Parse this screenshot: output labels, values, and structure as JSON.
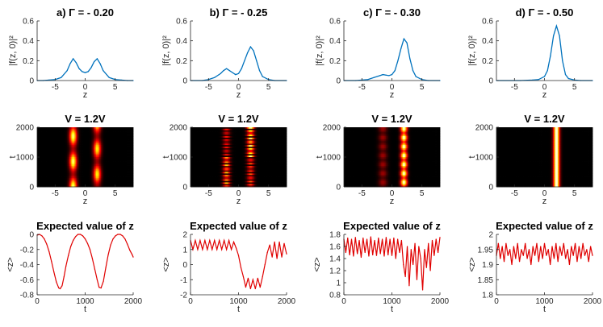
{
  "chart_data": [
    {
      "id": "a",
      "kind": "density",
      "type": "area",
      "title": "a) Γ = - 0.20",
      "xlabel": "z",
      "ylabel": "|f(z, 0)|²",
      "xlim": [
        -8,
        8
      ],
      "ylim": [
        0,
        0.6
      ],
      "xticks": [
        -5,
        0,
        5
      ],
      "yticks": [
        0,
        0.2,
        0.4,
        0.6
      ],
      "x": [
        -8,
        -7,
        -6,
        -5,
        -4,
        -3,
        -2.5,
        -2,
        -1.5,
        -1,
        -0.5,
        0,
        0.5,
        1,
        1.5,
        2,
        2.5,
        3,
        4,
        5,
        6,
        7,
        8
      ],
      "y": [
        0.0,
        0.0,
        0.005,
        0.01,
        0.03,
        0.1,
        0.17,
        0.22,
        0.18,
        0.12,
        0.09,
        0.08,
        0.09,
        0.13,
        0.19,
        0.22,
        0.17,
        0.1,
        0.03,
        0.01,
        0.005,
        0.0,
        0.0
      ]
    },
    {
      "id": "b",
      "kind": "density",
      "type": "area",
      "title": "b) Γ = - 0.25",
      "xlabel": "z",
      "ylabel": "|f(z, 0)|²",
      "xlim": [
        -8,
        8
      ],
      "ylim": [
        0,
        0.6
      ],
      "xticks": [
        -5,
        0,
        5
      ],
      "yticks": [
        0,
        0.2,
        0.4,
        0.6
      ],
      "x": [
        -8,
        -6,
        -5,
        -4,
        -3,
        -2.5,
        -2,
        -1.5,
        -1,
        -0.5,
        0,
        0.5,
        1,
        1.5,
        2,
        2.5,
        3,
        3.5,
        4,
        5,
        6,
        8
      ],
      "y": [
        0.0,
        0.0,
        0.01,
        0.03,
        0.07,
        0.1,
        0.12,
        0.1,
        0.08,
        0.06,
        0.07,
        0.12,
        0.2,
        0.28,
        0.34,
        0.3,
        0.2,
        0.1,
        0.04,
        0.01,
        0.0,
        0.0
      ]
    },
    {
      "id": "c",
      "kind": "density",
      "type": "area",
      "title": "c) Γ = - 0.30",
      "xlabel": "z",
      "ylabel": "|f(z, 0)|²",
      "xlim": [
        -8,
        8
      ],
      "ylim": [
        0,
        0.6
      ],
      "xticks": [
        -5,
        0,
        5
      ],
      "yticks": [
        0,
        0.2,
        0.4,
        0.6
      ],
      "x": [
        -8,
        -6,
        -5,
        -4,
        -3,
        -2,
        -1.5,
        -1,
        -0.5,
        0,
        0.5,
        1,
        1.5,
        2,
        2.5,
        3,
        3.5,
        4,
        5,
        6,
        8
      ],
      "y": [
        0.0,
        0.0,
        0.005,
        0.01,
        0.03,
        0.05,
        0.06,
        0.055,
        0.05,
        0.06,
        0.1,
        0.2,
        0.32,
        0.42,
        0.38,
        0.22,
        0.1,
        0.04,
        0.01,
        0.0,
        0.0
      ]
    },
    {
      "id": "d",
      "kind": "density",
      "type": "area",
      "title": "d) Γ = - 0.50",
      "xlabel": "z",
      "ylabel": "|f(z, 0)|²",
      "xlim": [
        -8,
        8
      ],
      "ylim": [
        0,
        0.6
      ],
      "xticks": [
        -5,
        0,
        5
      ],
      "yticks": [
        0,
        0.2,
        0.4,
        0.6
      ],
      "x": [
        -8,
        -4,
        -2,
        -1,
        0,
        0.5,
        1,
        1.5,
        2,
        2.5,
        3,
        3.5,
        4,
        5,
        6,
        8
      ],
      "y": [
        0.0,
        0.0,
        0.005,
        0.01,
        0.04,
        0.1,
        0.25,
        0.45,
        0.55,
        0.45,
        0.2,
        0.06,
        0.02,
        0.005,
        0.0,
        0.0
      ]
    },
    {
      "id": "a",
      "kind": "heatmap",
      "type": "heatmap",
      "title": "V = 1.2V",
      "xlabel": "z",
      "ylabel": "t",
      "xlim": [
        -8,
        8
      ],
      "ylim": [
        0,
        2000
      ],
      "xticks": [
        -5,
        0,
        5
      ],
      "yticks": [
        0,
        1000,
        2000
      ],
      "peaks": [
        {
          "z": -2,
          "amp": 0.9,
          "width": 0.6
        },
        {
          "z": 2,
          "amp": 0.8,
          "width": 0.6
        }
      ],
      "modulation": "swap",
      "period": 850
    },
    {
      "id": "b",
      "kind": "heatmap",
      "type": "heatmap",
      "title": "V = 1.2V",
      "xlabel": "z",
      "ylabel": "t",
      "xlim": [
        -8,
        8
      ],
      "ylim": [
        0,
        2000
      ],
      "xticks": [
        -5,
        0,
        5
      ],
      "yticks": [
        0,
        1000,
        2000
      ],
      "peaks": [
        {
          "z": -2,
          "amp": 0.75,
          "width": 0.6
        },
        {
          "z": 2,
          "amp": 0.95,
          "width": 0.6
        }
      ],
      "modulation": "stripes",
      "period": 120
    },
    {
      "id": "c",
      "kind": "heatmap",
      "type": "heatmap",
      "title": "V = 1.2V",
      "xlabel": "z",
      "ylabel": "t",
      "xlim": [
        -8,
        8
      ],
      "ylim": [
        0,
        2000
      ],
      "xticks": [
        -5,
        0,
        5
      ],
      "yticks": [
        0,
        1000,
        2000
      ],
      "peaks": [
        {
          "z": -1.5,
          "amp": 0.25,
          "width": 0.7
        },
        {
          "z": 2,
          "amp": 1.0,
          "width": 0.55
        }
      ],
      "modulation": "fine",
      "period": 60
    },
    {
      "id": "d",
      "kind": "heatmap",
      "type": "heatmap",
      "title": "V = 1.2V",
      "xlabel": "z",
      "ylabel": "t",
      "xlim": [
        -8,
        8
      ],
      "ylim": [
        0,
        2000
      ],
      "xticks": [
        -5,
        0,
        5
      ],
      "yticks": [
        0,
        1000,
        2000
      ],
      "peaks": [
        {
          "z": 2,
          "amp": 1.0,
          "width": 0.5
        }
      ],
      "modulation": "none",
      "period": 0
    },
    {
      "id": "a",
      "kind": "line",
      "type": "line",
      "title": "Expected value of z",
      "xlabel": "t",
      "ylabel": "<z>",
      "xlim": [
        0,
        2000
      ],
      "ylim": [
        -0.8,
        0
      ],
      "xticks": [
        0,
        1000,
        2000
      ],
      "yticks": [
        0,
        -0.2,
        -0.4,
        -0.6,
        -0.8
      ],
      "x": [
        0,
        50,
        100,
        150,
        200,
        250,
        300,
        350,
        400,
        450,
        480,
        520,
        560,
        600,
        650,
        700,
        750,
        800,
        850,
        900,
        950,
        1000,
        1050,
        1100,
        1150,
        1200,
        1250,
        1290,
        1330,
        1380,
        1430,
        1480,
        1530,
        1580,
        1630,
        1680,
        1730,
        1780,
        1830,
        1880,
        1930,
        1980,
        2000
      ],
      "y": [
        -0.01,
        0.0,
        -0.02,
        -0.06,
        -0.13,
        -0.23,
        -0.36,
        -0.5,
        -0.63,
        -0.71,
        -0.72,
        -0.68,
        -0.56,
        -0.42,
        -0.28,
        -0.16,
        -0.08,
        -0.03,
        0.0,
        0.0,
        -0.02,
        -0.06,
        -0.12,
        -0.2,
        -0.32,
        -0.46,
        -0.6,
        -0.7,
        -0.71,
        -0.62,
        -0.44,
        -0.27,
        -0.14,
        -0.06,
        -0.02,
        0.0,
        0.0,
        -0.02,
        -0.06,
        -0.13,
        -0.21,
        -0.27,
        -0.3
      ]
    },
    {
      "id": "b",
      "kind": "line",
      "type": "line",
      "title": "Expected value of z",
      "xlabel": "t",
      "ylabel": "<z>",
      "xlim": [
        0,
        2000
      ],
      "ylim": [
        -2,
        2
      ],
      "xticks": [
        0,
        1000,
        2000
      ],
      "yticks": [
        2,
        1,
        0,
        -1,
        -2
      ],
      "x": [
        0,
        50,
        100,
        150,
        200,
        250,
        300,
        350,
        400,
        450,
        500,
        550,
        600,
        650,
        700,
        750,
        800,
        850,
        900,
        950,
        1000,
        1050,
        1100,
        1150,
        1200,
        1250,
        1300,
        1350,
        1400,
        1450,
        1500,
        1550,
        1600,
        1650,
        1700,
        1750,
        1800,
        1850,
        1900,
        1950,
        2000
      ],
      "y": [
        1.6,
        1.0,
        1.6,
        1.0,
        1.6,
        1.0,
        1.6,
        1.0,
        1.6,
        1.0,
        1.6,
        1.0,
        1.6,
        1.0,
        1.6,
        1.0,
        1.6,
        1.0,
        1.5,
        1.1,
        0.6,
        -0.2,
        -0.8,
        -1.5,
        -0.9,
        -1.6,
        -1.0,
        -1.6,
        -0.9,
        -1.5,
        -0.8,
        0.0,
        0.8,
        1.3,
        0.5,
        1.5,
        0.4,
        1.5,
        0.5,
        1.4,
        0.7
      ]
    },
    {
      "id": "c",
      "kind": "line",
      "type": "line",
      "title": "Expected value of z",
      "xlabel": "t",
      "ylabel": "<z>",
      "xlim": [
        0,
        2000
      ],
      "ylim": [
        0.8,
        1.8
      ],
      "xticks": [
        0,
        1000,
        2000
      ],
      "yticks": [
        1.8,
        1.6,
        1.4,
        1.2,
        1,
        0.8
      ],
      "x": [
        0,
        40,
        80,
        120,
        160,
        200,
        240,
        280,
        320,
        360,
        400,
        440,
        480,
        520,
        560,
        600,
        640,
        680,
        720,
        760,
        800,
        840,
        880,
        920,
        960,
        1000,
        1040,
        1080,
        1120,
        1160,
        1200,
        1240,
        1280,
        1320,
        1360,
        1400,
        1440,
        1480,
        1520,
        1560,
        1600,
        1640,
        1680,
        1720,
        1760,
        1800,
        1840,
        1880,
        1920,
        1960,
        2000
      ],
      "y": [
        1.72,
        1.5,
        1.74,
        1.46,
        1.72,
        1.44,
        1.75,
        1.48,
        1.7,
        1.42,
        1.74,
        1.5,
        1.72,
        1.44,
        1.76,
        1.46,
        1.7,
        1.45,
        1.74,
        1.48,
        1.72,
        1.44,
        1.75,
        1.46,
        1.72,
        1.45,
        1.74,
        1.4,
        1.72,
        1.5,
        1.7,
        1.3,
        1.1,
        1.6,
        0.95,
        1.55,
        1.3,
        1.65,
        1.05,
        1.6,
        1.4,
        0.88,
        1.55,
        1.25,
        1.65,
        1.2,
        1.7,
        1.45,
        1.72,
        1.5,
        1.75
      ]
    },
    {
      "id": "d",
      "kind": "line",
      "type": "line",
      "title": "Expected value of z",
      "xlabel": "t",
      "ylabel": "<z>",
      "xlim": [
        0,
        2000
      ],
      "ylim": [
        1.8,
        2.0
      ],
      "xticks": [
        0,
        1000,
        2000
      ],
      "yticks": [
        2,
        1.95,
        1.9,
        1.85,
        1.8
      ],
      "x": [
        0,
        40,
        80,
        120,
        160,
        200,
        240,
        280,
        320,
        360,
        400,
        440,
        480,
        520,
        560,
        600,
        640,
        680,
        720,
        760,
        800,
        840,
        880,
        920,
        960,
        1000,
        1040,
        1080,
        1120,
        1160,
        1200,
        1240,
        1280,
        1320,
        1360,
        1400,
        1440,
        1480,
        1520,
        1560,
        1600,
        1640,
        1680,
        1720,
        1760,
        1800,
        1840,
        1880,
        1920,
        1960,
        2000
      ],
      "y": [
        1.93,
        1.97,
        1.92,
        1.96,
        1.91,
        1.97,
        1.93,
        1.95,
        1.9,
        1.96,
        1.92,
        1.97,
        1.91,
        1.95,
        1.93,
        1.97,
        1.92,
        1.95,
        1.9,
        1.96,
        1.93,
        1.97,
        1.91,
        1.96,
        1.92,
        1.97,
        1.93,
        1.95,
        1.9,
        1.96,
        1.92,
        1.97,
        1.91,
        1.96,
        1.93,
        1.97,
        1.92,
        1.95,
        1.9,
        1.96,
        1.93,
        1.97,
        1.91,
        1.96,
        1.92,
        1.97,
        1.93,
        1.95,
        1.91,
        1.96,
        1.93
      ]
    }
  ]
}
